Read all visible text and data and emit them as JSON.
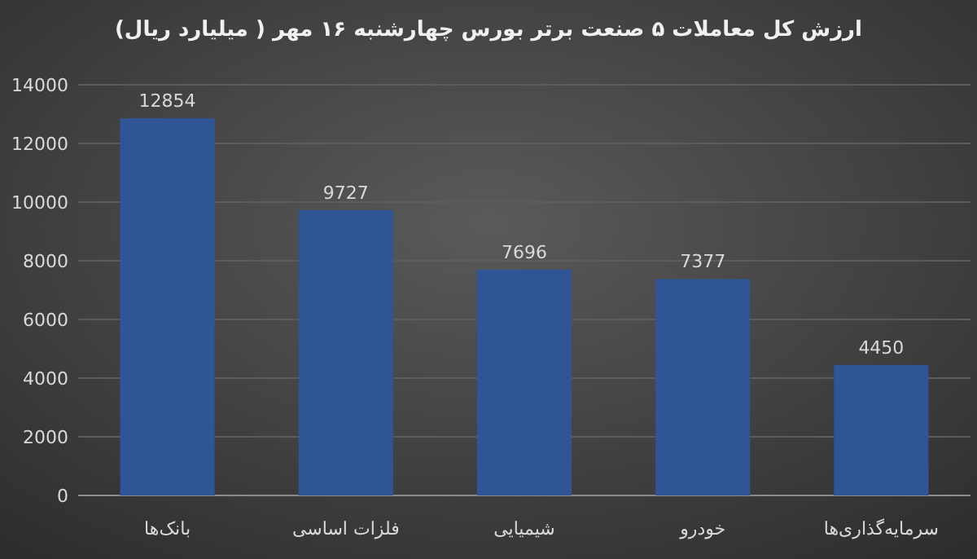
{
  "chart_data": {
    "type": "bar",
    "title": "ارزش کل معاملات ۵ صنعت برتر بورس چهارشنبه ۱۶ مهر ( میلیارد ریال)",
    "categories": [
      "بانک‌ها",
      "فلزات اساسی",
      "شیمیایی",
      "خودرو",
      "سرمایه‌گذاری‌ها"
    ],
    "values": [
      12854,
      9727,
      7696,
      7377,
      4450
    ],
    "color": "#2f5597",
    "ylim": [
      0,
      14000
    ],
    "yticks": [
      0,
      2000,
      4000,
      6000,
      8000,
      10000,
      12000,
      14000
    ],
    "grid": "y",
    "data_labels": true
  }
}
